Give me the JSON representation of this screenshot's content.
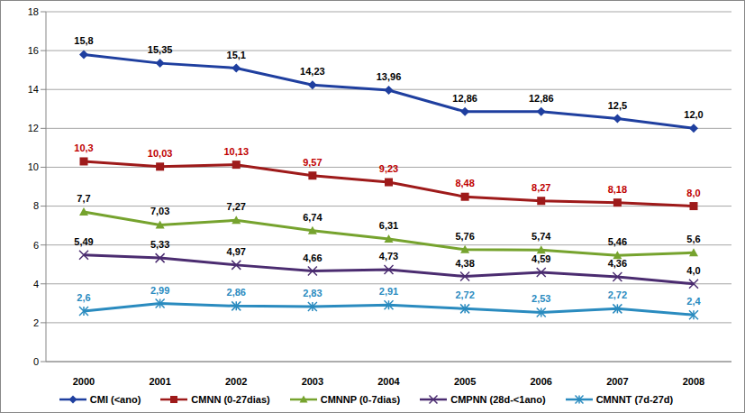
{
  "chart_data": {
    "type": "line",
    "categories": [
      "2000",
      "2001",
      "2002",
      "2003",
      "2004",
      "2005",
      "2006",
      "2007",
      "2008"
    ],
    "ylim": [
      0,
      18
    ],
    "yticks": [
      0,
      2,
      4,
      6,
      8,
      10,
      12,
      14,
      16,
      18
    ],
    "grid": true,
    "legend": "bottom",
    "data_labels": true,
    "series": [
      {
        "name": "CMI (<ano)",
        "color": "#1f3f9f",
        "marker": "diamond",
        "values": [
          15.8,
          15.35,
          15.1,
          14.23,
          13.96,
          12.86,
          12.86,
          12.5,
          12.0
        ],
        "value_labels": [
          "15,8",
          "15,35",
          "15,1",
          "14,23",
          "13,96",
          "12,86",
          "12,86",
          "12,5",
          "12,0"
        ]
      },
      {
        "name": "CMNN (0-27dias)",
        "color": "#9e1a1a",
        "marker": "square",
        "values": [
          10.3,
          10.03,
          10.13,
          9.57,
          9.23,
          8.48,
          8.27,
          8.18,
          8.0
        ],
        "value_labels": [
          "10,3",
          "10,03",
          "10,13",
          "9,57",
          "9,23",
          "8,48",
          "8,27",
          "8,18",
          "8,0"
        ]
      },
      {
        "name": "CMNNP (0-7dias)",
        "color": "#76a32e",
        "marker": "triangle",
        "values": [
          7.7,
          7.03,
          7.27,
          6.74,
          6.31,
          5.76,
          5.74,
          5.46,
          5.6
        ],
        "value_labels": [
          "7,7",
          "7,03",
          "7,27",
          "6,74",
          "6,31",
          "5,76",
          "5,74",
          "5,46",
          "5,6"
        ]
      },
      {
        "name": "CMPNN (28d-<1ano)",
        "color": "#4b2c70",
        "marker": "x",
        "values": [
          5.49,
          5.33,
          4.97,
          4.66,
          4.73,
          4.38,
          4.59,
          4.36,
          4.0
        ],
        "value_labels": [
          "5,49",
          "5,33",
          "4,97",
          "4,66",
          "4,73",
          "4,38",
          "4,59",
          "4,36",
          "4,0"
        ]
      },
      {
        "name": "CMNNT (7d-27d)",
        "color": "#2a8bbf",
        "marker": "star",
        "values": [
          2.6,
          2.99,
          2.86,
          2.83,
          2.91,
          2.72,
          2.53,
          2.72,
          2.4
        ],
        "value_labels": [
          "2,6",
          "2,99",
          "2,86",
          "2,83",
          "2,91",
          "2,72",
          "2,53",
          "2,72",
          "2,4"
        ]
      }
    ]
  }
}
